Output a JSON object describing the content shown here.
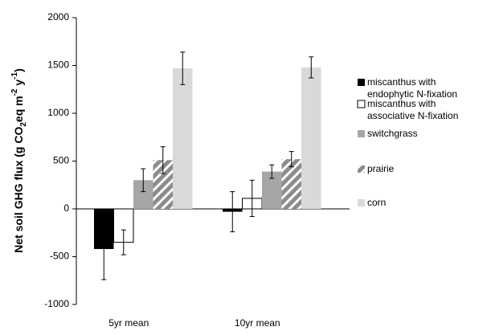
{
  "chart_data": {
    "type": "bar",
    "ylabel_parts": [
      "Net soil GHG flux (g CO",
      "2",
      "eq m",
      "-2",
      " y",
      "-1",
      ")"
    ],
    "categories": [
      "5yr mean",
      "10yr mean"
    ],
    "series": [
      {
        "name": "miscanthus with\nendophytic N-fixation",
        "color": "#000000",
        "values": [
          -420,
          -30
        ],
        "errors": [
          320,
          210
        ]
      },
      {
        "name": "miscanthus with\nassociative N-fixation",
        "color": "#ffffff",
        "values": [
          -350,
          110
        ],
        "errors": [
          130,
          190
        ]
      },
      {
        "name": "switchgrass",
        "color": "#a6a6a6",
        "values": [
          300,
          390
        ],
        "errors": [
          120,
          70
        ]
      },
      {
        "name": "prairie",
        "color": "#8c8c8c",
        "hatch": true,
        "values": [
          510,
          520
        ],
        "errors": [
          140,
          80
        ]
      },
      {
        "name": "corn",
        "color": "#d9d9d9",
        "values": [
          1470,
          1480
        ],
        "errors": [
          170,
          110
        ]
      }
    ],
    "ylim": [
      -1000,
      2000
    ],
    "yticks": [
      -1000,
      -500,
      0,
      500,
      1000,
      1500,
      2000
    ],
    "grid": false,
    "legend": "right"
  }
}
